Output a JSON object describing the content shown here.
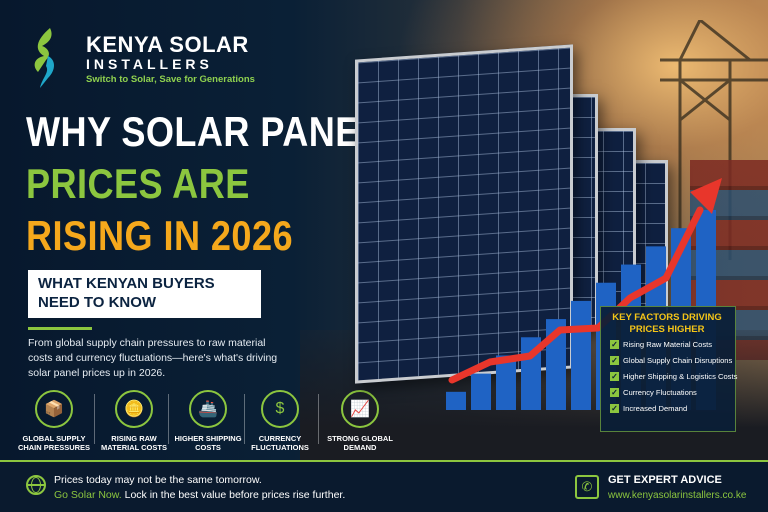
{
  "brand": {
    "name_line1": "KENYA SOLAR",
    "name_line2": "INSTALLERS",
    "tagline": "Switch to Solar, Save for Generations"
  },
  "headline": {
    "line1": "WHY SOLAR PANEL",
    "line2": "PRICES ARE",
    "line3": "RISING IN 2026"
  },
  "subheadline": {
    "line1": "WHAT KENYAN BUYERS",
    "line2": "NEED TO KNOW"
  },
  "intro": "From global supply chain pressures to raw material costs and currency fluctuations—here's what's driving solar panel prices up in 2026.",
  "factors": [
    {
      "icon": "box-icon",
      "glyph": "📦",
      "line1": "GLOBAL SUPPLY",
      "line2": "CHAIN PRESSURES"
    },
    {
      "icon": "coins-icon",
      "glyph": "🪙",
      "line1": "RISING RAW",
      "line2": "MATERIAL COSTS"
    },
    {
      "icon": "ship-icon",
      "glyph": "🚢",
      "line1": "HIGHER SHIPPING",
      "line2": "COSTS"
    },
    {
      "icon": "currency-icon",
      "glyph": "$",
      "line1": "CURRENCY",
      "line2": "FLUCTUATIONS"
    },
    {
      "icon": "growth-chart-icon",
      "glyph": "📈",
      "line1": "STRONG GLOBAL",
      "line2": "DEMAND"
    }
  ],
  "key_factors": {
    "title_line1": "KEY FACTORS DRIVING",
    "title_line2": "PRICES HIGHER",
    "items": [
      "Rising Raw Material Costs",
      "Global Supply Chain Disruptions",
      "Higher Shipping & Logistics Costs",
      "Currency Fluctuations",
      "Increased Demand"
    ]
  },
  "footer": {
    "line1": "Prices today may not be the same tomorrow.",
    "line2_highlight": "Go Solar Now.",
    "line2_rest": " Lock in the best value before prices rise further.",
    "cta": "GET EXPERT ADVICE",
    "website": "www.kenyasolarinstallers.co.ke"
  },
  "colors": {
    "navy": "#07182d",
    "green": "#8cc63f",
    "orange": "#f5a81c",
    "arrow_red": "#e8362b",
    "bar_blue": "#1f63c4"
  },
  "chart_data": {
    "type": "bar",
    "values": [
      1,
      2,
      3,
      4,
      5,
      6,
      7,
      8,
      9,
      10,
      11
    ]
  }
}
